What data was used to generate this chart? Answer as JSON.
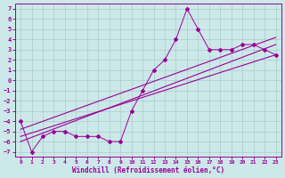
{
  "title": "",
  "xlabel": "Windchill (Refroidissement éolien,°C)",
  "ylabel": "",
  "bg_color": "#cce8e8",
  "line_color": "#990099",
  "grid_color": "#aacccc",
  "xlim": [
    -0.5,
    23.5
  ],
  "ylim": [
    -7.5,
    7.5
  ],
  "xticks": [
    0,
    1,
    2,
    3,
    4,
    5,
    6,
    7,
    8,
    9,
    10,
    11,
    12,
    13,
    14,
    15,
    16,
    17,
    18,
    19,
    20,
    21,
    22,
    23
  ],
  "yticks": [
    -7,
    -6,
    -5,
    -4,
    -3,
    -2,
    -1,
    0,
    1,
    2,
    3,
    4,
    5,
    6,
    7
  ],
  "data_x": [
    0,
    1,
    2,
    3,
    4,
    5,
    6,
    7,
    8,
    9,
    10,
    11,
    12,
    13,
    14,
    15,
    16,
    17,
    18,
    19,
    20,
    21,
    22,
    23
  ],
  "data_y": [
    -4,
    -7,
    -5.5,
    -5,
    -5,
    -5.5,
    -5.5,
    -5.5,
    -6,
    -6,
    -3,
    -1,
    1,
    2,
    4,
    7,
    5,
    3,
    3,
    3,
    3.5,
    3.5,
    3,
    2.5
  ],
  "trend1_x": [
    0,
    23
  ],
  "trend1_y": [
    -6.0,
    3.5
  ],
  "trend2_x": [
    0,
    23
  ],
  "trend2_y": [
    -5.5,
    2.5
  ],
  "trend3_x": [
    0,
    23
  ],
  "trend3_y": [
    -4.8,
    4.2
  ]
}
